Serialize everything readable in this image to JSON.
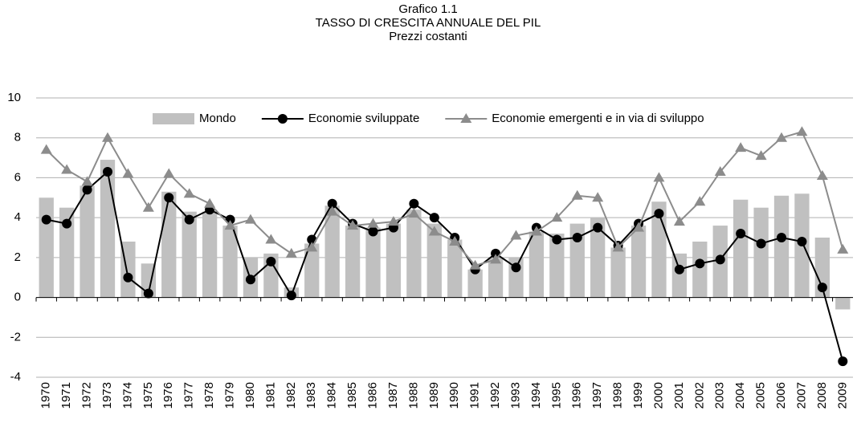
{
  "chart_data": {
    "type": "bar_line",
    "title": "Grafico 1.1",
    "subtitle": [
      "TASSO DI CRESCITA ANNUALE DEL PIL",
      "Prezzi costanti"
    ],
    "categories": [
      "1970",
      "1971",
      "1972",
      "1973",
      "1974",
      "1975",
      "1976",
      "1977",
      "1978",
      "1979",
      "1980",
      "1981",
      "1982",
      "1983",
      "1984",
      "1985",
      "1986",
      "1987",
      "1988",
      "1989",
      "1990",
      "1991",
      "1992",
      "1993",
      "1994",
      "1995",
      "1996",
      "1997",
      "1998",
      "1999",
      "2000",
      "2001",
      "2002",
      "2003",
      "2004",
      "2005",
      "2006",
      "2007",
      "2008",
      "2009"
    ],
    "series": [
      {
        "name": "Mondo",
        "type": "bar",
        "color": "#c0c0c0",
        "values": [
          5.0,
          4.5,
          5.6,
          6.9,
          2.8,
          1.7,
          5.3,
          4.3,
          4.3,
          3.6,
          2.0,
          2.2,
          0.5,
          2.7,
          4.6,
          3.6,
          3.5,
          3.7,
          4.4,
          3.7,
          2.9,
          1.4,
          2.0,
          2.0,
          3.3,
          3.2,
          3.7,
          4.0,
          2.5,
          3.6,
          4.8,
          2.2,
          2.8,
          3.6,
          4.9,
          4.5,
          5.1,
          5.2,
          3.0,
          -0.6
        ]
      },
      {
        "name": "Economie sviluppate",
        "type": "line",
        "marker": "circle",
        "color": "#000000",
        "values": [
          3.9,
          3.7,
          5.4,
          6.3,
          1.0,
          0.2,
          5.0,
          3.9,
          4.4,
          3.9,
          0.9,
          1.8,
          0.1,
          2.9,
          4.7,
          3.7,
          3.3,
          3.5,
          4.7,
          4.0,
          3.0,
          1.4,
          2.2,
          1.5,
          3.5,
          2.9,
          3.0,
          3.5,
          2.6,
          3.7,
          4.2,
          1.4,
          1.7,
          1.9,
          3.2,
          2.7,
          3.0,
          2.8,
          0.5,
          -3.2
        ]
      },
      {
        "name": "Economie emergenti e in via di sviluppo",
        "type": "line",
        "marker": "triangle",
        "color": "#8c8c8c",
        "values": [
          7.4,
          6.4,
          5.8,
          8.0,
          6.2,
          4.5,
          6.2,
          5.2,
          4.7,
          3.6,
          3.9,
          2.9,
          2.2,
          2.5,
          4.3,
          3.6,
          3.7,
          3.8,
          4.2,
          3.3,
          2.8,
          1.6,
          1.9,
          3.1,
          3.3,
          4.0,
          5.1,
          5.0,
          2.5,
          3.5,
          6.0,
          3.8,
          4.8,
          6.3,
          7.5,
          7.1,
          8.0,
          8.3,
          6.1,
          2.4
        ]
      }
    ],
    "ylim": [
      -4,
      10
    ],
    "yticks": [
      -4,
      -2,
      0,
      2,
      4,
      6,
      8,
      10
    ],
    "grid": true,
    "legend": "top"
  }
}
